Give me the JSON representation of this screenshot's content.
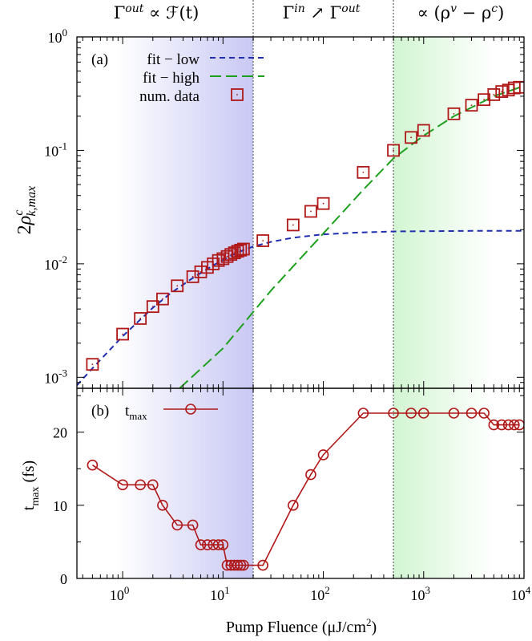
{
  "chart_data": [
    {
      "panel": "(a)",
      "type": "scatter",
      "ylabel": "2ρ^c_{k,max}",
      "xscale": "log",
      "yscale": "log",
      "xlim": [
        0.35,
        10000
      ],
      "ylim": [
        0.0008,
        1
      ],
      "xticks": [
        "10^0",
        "10^1",
        "10^2",
        "10^3",
        "10^4"
      ],
      "yticks": [
        "10^-3",
        "10^-2",
        "10^-1",
        "10^0"
      ],
      "legend_position": "top-left",
      "series": [
        {
          "name": "fit − low",
          "style": "short-dash",
          "color": "#1f2fb0",
          "x": [
            0.35,
            0.5,
            1,
            2,
            3,
            5,
            8,
            12,
            16,
            20,
            30,
            50,
            100,
            200,
            500,
            1000,
            3000,
            10000
          ],
          "y": [
            0.00085,
            0.0012,
            0.0023,
            0.0041,
            0.0055,
            0.0075,
            0.0097,
            0.0118,
            0.0132,
            0.0142,
            0.0156,
            0.017,
            0.0182,
            0.0188,
            0.0193,
            0.0194,
            0.0195,
            0.0195
          ]
        },
        {
          "name": "fit − high",
          "style": "long-dash",
          "color": "#1ea01e",
          "x": [
            3.7,
            10,
            30,
            100,
            250,
            500,
            1000,
            2000,
            5000,
            10000
          ],
          "y": [
            0.0008,
            0.0018,
            0.0058,
            0.0185,
            0.045,
            0.085,
            0.135,
            0.2,
            0.3,
            0.37
          ]
        },
        {
          "name": "num. data",
          "style": "open-square-with-dot",
          "color": "#b01818",
          "x": [
            0.5,
            1,
            1.5,
            2,
            2.5,
            3.5,
            5,
            6,
            7,
            8,
            9,
            10,
            11,
            12,
            13,
            14,
            15,
            16,
            25,
            50,
            75,
            100,
            250,
            500,
            750,
            1000,
            2000,
            3000,
            4000,
            5000,
            6000,
            7000,
            8000,
            9000
          ],
          "y": [
            0.0013,
            0.0024,
            0.0033,
            0.0042,
            0.0049,
            0.0064,
            0.0077,
            0.0085,
            0.0093,
            0.01,
            0.0107,
            0.0111,
            0.0116,
            0.0121,
            0.0125,
            0.0129,
            0.0132,
            0.0135,
            0.016,
            0.022,
            0.029,
            0.034,
            0.064,
            0.1,
            0.13,
            0.15,
            0.21,
            0.25,
            0.28,
            0.31,
            0.33,
            0.34,
            0.355,
            0.36
          ]
        }
      ]
    },
    {
      "panel": "(b)",
      "type": "line",
      "xlabel": "Pump Fluence (μJ/cm²)",
      "ylabel": "t_max (fs)",
      "xscale": "log",
      "xlim": [
        0.35,
        10000
      ],
      "ylim": [
        0,
        26
      ],
      "yticks": [
        "0",
        "10",
        "20"
      ],
      "legend_position": "top-left",
      "series": [
        {
          "name": "t_max",
          "marker": "open-circle",
          "color": "#b01818",
          "x": [
            0.5,
            1,
            1.5,
            2,
            2.5,
            3.5,
            5,
            6,
            7,
            8,
            9,
            10,
            11,
            12,
            13,
            14,
            15,
            16,
            25,
            50,
            75,
            100,
            250,
            500,
            750,
            1000,
            2000,
            3000,
            4000,
            5000,
            6000,
            7000,
            8000,
            9000
          ],
          "y": [
            15.5,
            12.8,
            12.8,
            12.8,
            10.0,
            7.3,
            7.3,
            4.6,
            4.6,
            4.6,
            4.6,
            4.6,
            1.8,
            1.8,
            1.8,
            1.8,
            1.8,
            1.8,
            1.8,
            10.0,
            14.2,
            16.9,
            22.6,
            22.6,
            22.6,
            22.6,
            22.6,
            22.6,
            22.6,
            21.0,
            21.0,
            21.0,
            21.0,
            21.0
          ]
        }
      ]
    }
  ],
  "header": {
    "region1": "Γ^out ∝ ℱ(t)",
    "region2": "Γ^in ↗ Γ^out",
    "region3": "∝ (ρ^v − ρ^c)"
  },
  "regions": {
    "boundaries_x": [
      20,
      500
    ],
    "shade_blue": {
      "from": 1,
      "to": 20,
      "color": "#c8c8f4"
    },
    "shade_green": {
      "from": 500,
      "to": 5000,
      "color": "#d2f5d2"
    }
  },
  "colors": {
    "data": "#b01818",
    "fit_low": "#1f2fb0",
    "fit_high": "#1ea01e",
    "separator": "#888888"
  },
  "panel_a_label": "(a)",
  "panel_b_label": "(b)"
}
